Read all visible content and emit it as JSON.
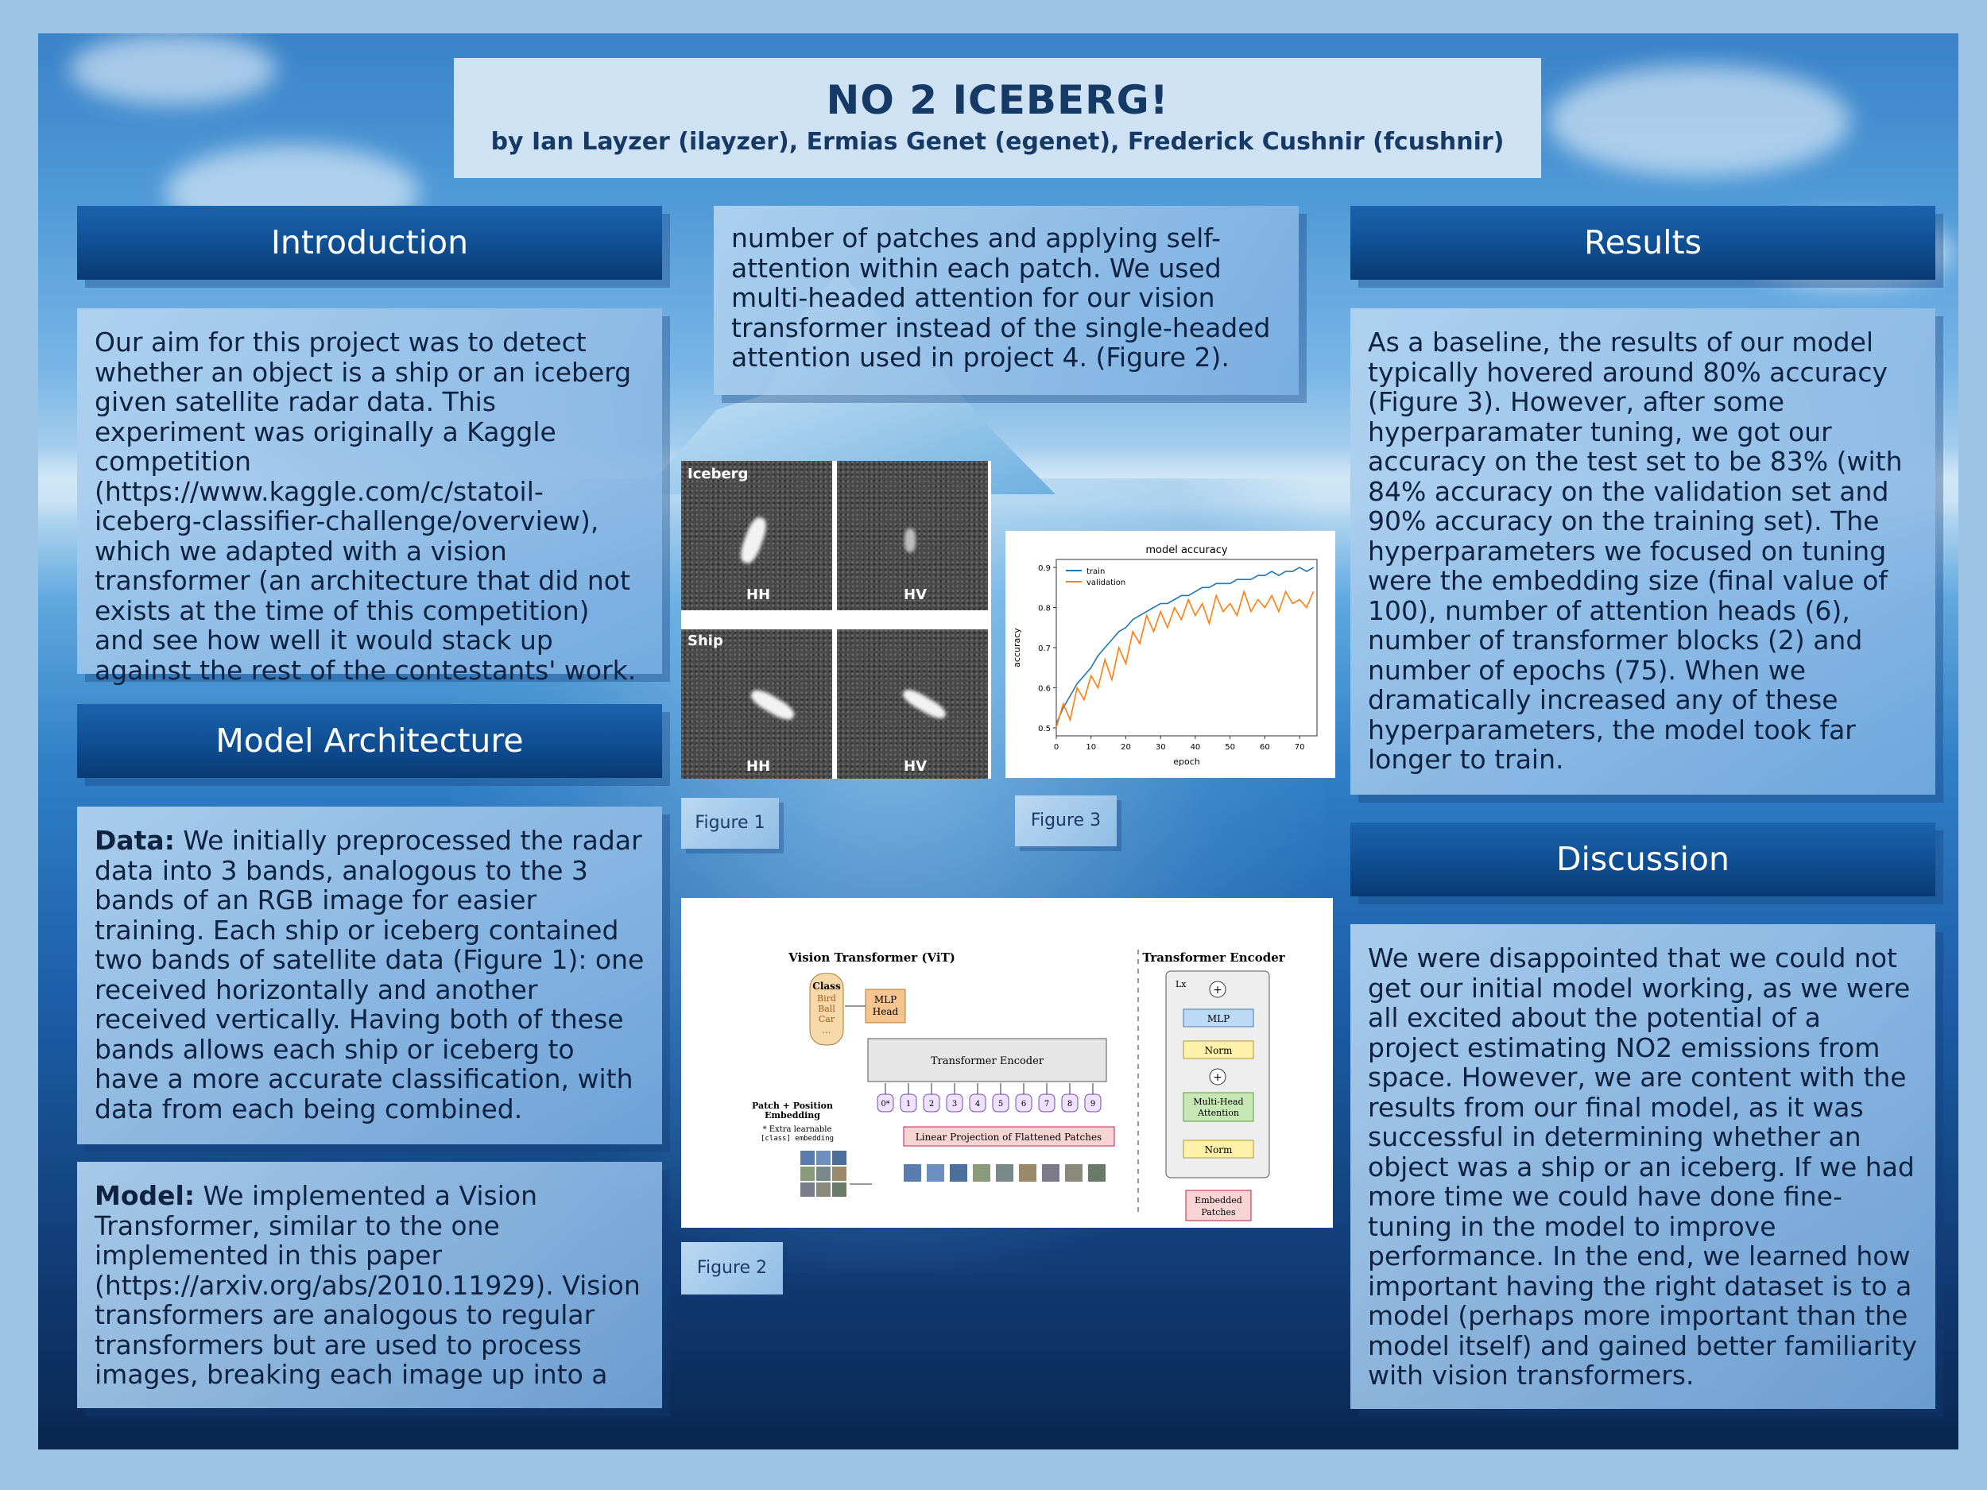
{
  "title": "NO 2 ICEBERG!",
  "authors": "by Ian Layzer (ilayzer), Ermias Genet (egenet), Frederick Cushnir (fcushnir)",
  "sections": {
    "introduction": {
      "heading": "Introduction",
      "text": "Our aim for this project was to detect whether an object is a ship or an iceberg given satellite radar data. This experiment was originally a Kaggle competition (https://www.kaggle.com/c/statoil-iceberg-classifier-challenge/overview), which we adapted with a vision transformer (an architecture that did not exists at the time of this competition) and see how well it would stack up against the rest of the contestants' work."
    },
    "model_architecture": {
      "heading": "Model Architecture",
      "data_label": "Data:",
      "data_text": " We initially preprocessed the radar data into 3 bands, analogous to the 3 bands of an RGB image for easier training. Each ship or iceberg contained two bands of satellite data (Figure 1): one received horizontally and another received vertically. Having both of these bands allows each ship or iceberg to have a more accurate classification, with data from each being combined.",
      "model_label": "Model:",
      "model_text": " We implemented a Vision Transformer, similar to the one implemented in this paper (https://arxiv.org/abs/2010.11929). Vision transformers are analogous to regular transformers but are used to process images, breaking each image up into a",
      "continued_text": "number of patches and applying self-attention within each patch. We used multi-headed attention for our vision transformer instead of the single-headed attention used in project 4. (Figure 2)."
    },
    "results": {
      "heading": "Results",
      "text": "As a baseline, the results of our model typically hovered around 80% accuracy (Figure 3). However, after some hyperparamater tuning, we got our accuracy on the test set to be 83% (with 84% accuracy on the validation set and 90% accuracy on the training set). The hyperparameters we focused on tuning were the embedding size (final value of 100), number of attention heads (6), number of transformer blocks (2) and number of epochs (75). When we dramatically increased any of these hyperparameters, the model took far longer to train."
    },
    "discussion": {
      "heading": "Discussion",
      "text": "We were disappointed that we could not get our initial model working, as we were all excited about the potential of a project estimating NO2 emissions from space. However, we are content with the results from our final model, as it was successful in determining whether an object was a ship or an iceberg. If we had more time we could have done fine-tuning in the model to improve performance. In the end, we learned how important having the right dataset is to a model (perhaps more important than the model itself) and gained better familiarity with vision transformers."
    }
  },
  "figures": {
    "fig1": {
      "caption": "Figure 1",
      "row_labels": [
        "Iceberg",
        "Ship"
      ],
      "col_labels": [
        "HH",
        "HV"
      ]
    },
    "fig2": {
      "caption": "Figure 2",
      "left_title": "Vision Transformer (ViT)",
      "right_title": "Transformer Encoder",
      "class_label": "Class",
      "class_items": [
        "Bird",
        "Ball",
        "Car",
        "..."
      ],
      "mlp_head": [
        "MLP",
        "Head"
      ],
      "transformer_encoder": "Transformer Encoder",
      "patch_embedding": [
        "Patch + Position",
        "Embedding"
      ],
      "extra_learnable": [
        "* Extra learnable",
        "[class] embedding"
      ],
      "linear_projection": "Linear Projection of Flattened Patches",
      "tokens": [
        "0*",
        "1",
        "2",
        "3",
        "4",
        "5",
        "6",
        "7",
        "8",
        "9"
      ],
      "encoder_blocks": [
        "Lx",
        "MLP",
        "Norm",
        "Multi-Head",
        "Attention",
        "Norm",
        "Embedded",
        "Patches"
      ]
    },
    "fig3": {
      "caption": "Figure 3"
    }
  },
  "chart_data": {
    "type": "line",
    "title": "model accuracy",
    "xlabel": "epoch",
    "ylabel": "accuracy",
    "xlim": [
      0,
      75
    ],
    "ylim": [
      0.48,
      0.92
    ],
    "xticks": [
      0,
      10,
      20,
      30,
      40,
      50,
      60,
      70
    ],
    "yticks": [
      0.5,
      0.6,
      0.7,
      0.8,
      0.9
    ],
    "legend_position": "top-left",
    "series": [
      {
        "name": "train",
        "color": "#1f77b4",
        "x": [
          0,
          2,
          4,
          6,
          8,
          10,
          12,
          14,
          16,
          18,
          20,
          22,
          24,
          26,
          28,
          30,
          32,
          34,
          36,
          38,
          40,
          42,
          44,
          46,
          48,
          50,
          52,
          54,
          56,
          58,
          60,
          62,
          64,
          66,
          68,
          70,
          72,
          74
        ],
        "values": [
          0.51,
          0.55,
          0.58,
          0.61,
          0.63,
          0.65,
          0.68,
          0.7,
          0.72,
          0.74,
          0.75,
          0.77,
          0.78,
          0.79,
          0.8,
          0.81,
          0.81,
          0.82,
          0.83,
          0.83,
          0.84,
          0.85,
          0.85,
          0.86,
          0.86,
          0.86,
          0.87,
          0.87,
          0.87,
          0.88,
          0.88,
          0.89,
          0.88,
          0.89,
          0.89,
          0.9,
          0.89,
          0.9
        ]
      },
      {
        "name": "validation",
        "color": "#ff7f0e",
        "x": [
          0,
          2,
          4,
          6,
          8,
          10,
          12,
          14,
          16,
          18,
          20,
          22,
          24,
          26,
          28,
          30,
          32,
          34,
          36,
          38,
          40,
          42,
          44,
          46,
          48,
          50,
          52,
          54,
          56,
          58,
          60,
          62,
          64,
          66,
          68,
          70,
          72,
          74
        ],
        "values": [
          0.5,
          0.56,
          0.52,
          0.6,
          0.57,
          0.63,
          0.6,
          0.67,
          0.62,
          0.7,
          0.66,
          0.74,
          0.71,
          0.78,
          0.74,
          0.79,
          0.75,
          0.8,
          0.77,
          0.82,
          0.78,
          0.81,
          0.76,
          0.83,
          0.79,
          0.81,
          0.78,
          0.84,
          0.79,
          0.82,
          0.8,
          0.83,
          0.79,
          0.84,
          0.81,
          0.82,
          0.8,
          0.84
        ]
      }
    ]
  }
}
